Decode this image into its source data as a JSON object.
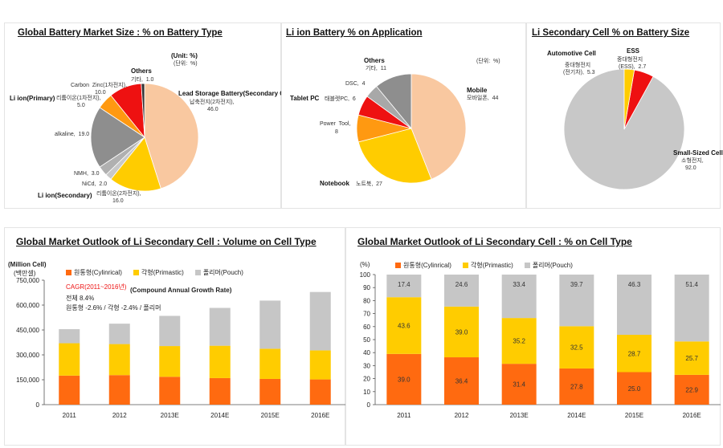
{
  "colors": {
    "cylindrical": "#FF6A10",
    "prismatic": "#FFCC00",
    "pouch": "#C6C6C6",
    "red": "#EE1111",
    "orange": "#FF9911",
    "peach": "#F9C8A0",
    "gray": "#8E8E8E",
    "lightgray": "#C8C8C8",
    "cagr": "#EE1111"
  },
  "pie1": {
    "title": "Global Battery Market Size : % on Battery Type",
    "unit_en": "(Unit: %)",
    "unit_ko": "(단위:  %)",
    "labels": {
      "others": {
        "name": "Others",
        "value": "기타,  1.0"
      },
      "lead": {
        "name": "Lead Storage Battery(Secondary Cell)",
        "line2": "납축전지(2차전지),",
        "line3": "46.0"
      },
      "li_secondary": {
        "name": "Li ion(Secondary)",
        "line2": "리튬이온(2차전지),",
        "line3": "16.0"
      },
      "nicd": "NiCd,  2.0",
      "nmh": "NMH,  3.0",
      "alkaline": "alkaline,  19.0",
      "li_primary": {
        "name": "Li ion(Primary)",
        "line2": "리튬이온(1차전지),",
        "line3": "5.0"
      },
      "carbon": {
        "line1": "Carbon  Zinc(1차전지),",
        "line2": "10.0"
      }
    }
  },
  "pie2": {
    "title": "Li ion Battery % on Application",
    "unit_ko": "(단위:  %)",
    "labels": {
      "others": {
        "name": "Others",
        "value": "기타,  11"
      },
      "mobile": {
        "name": "Mobile",
        "value": "모바일폰,  44"
      },
      "notebook": {
        "name": "Notebook",
        "value": "노트북,  27"
      },
      "power": {
        "line1": "Power  Tool,",
        "line2": "8"
      },
      "tablet": {
        "name": "Tablet PC",
        "value": "태블렛PC,  6"
      },
      "dsc": "DSC,  4"
    }
  },
  "pie3": {
    "title": "Li Secondary Cell % on Battery Size",
    "labels": {
      "auto": {
        "name": "Automotive Cell",
        "line2": "중대형전지",
        "line3": "(전기차),  5.3"
      },
      "ess": {
        "name": "ESS",
        "line2": "중대형전지",
        "line3": "(ESS),  2.7"
      },
      "small": {
        "name": "Small-Sized Cell",
        "line2": "소형전지,",
        "line3": "92.0"
      }
    }
  },
  "bar1": {
    "title": "Global Market Outlook of Li Secondary Cell : Volume on Cell Type",
    "unit_en": "(Million Cell)",
    "unit_ko": "(백만셀)",
    "cagr_title": "CAGR(2011~2016년)",
    "cagr_en": "(Compound Annual Growth Rate)",
    "cagr_total": "전체  8.4%",
    "cagr_detail": "원통형  -2.6%   /   각형  -2.4%   /   폴리머"
  },
  "bar2": {
    "title": "Global Market Outlook of Li Secondary Cell : % on Cell Type",
    "unit": "(%)"
  },
  "legend": {
    "cyl": "원통형(Cylinrical)",
    "pri": "각형(Primastic)",
    "pou": "폴리머(Pouch)"
  },
  "chart_data": [
    {
      "type": "pie",
      "title": "Global Battery Market Size : % on Battery Type",
      "categories": [
        "Lead Storage Battery(Secondary Cell)",
        "Li ion(Secondary)",
        "NiCd",
        "NMH",
        "alkaline",
        "Li ion(Primary)",
        "Carbon Zinc",
        "Others"
      ],
      "values": [
        46.0,
        16.0,
        2.0,
        3.0,
        19.0,
        5.0,
        10.0,
        1.0
      ]
    },
    {
      "type": "pie",
      "title": "Li ion Battery % on Application",
      "categories": [
        "Mobile",
        "Notebook",
        "Power Tool",
        "Tablet PC",
        "DSC",
        "Others"
      ],
      "values": [
        44,
        27,
        8,
        6,
        4,
        11
      ]
    },
    {
      "type": "pie",
      "title": "Li Secondary Cell % on Battery Size",
      "categories": [
        "Small-Sized Cell",
        "Automotive Cell",
        "ESS"
      ],
      "values": [
        92.0,
        5.3,
        2.7
      ]
    },
    {
      "type": "bar",
      "stacked": true,
      "title": "Global Market Outlook of Li Secondary Cell : Volume on Cell Type",
      "ylabel": "(Million Cell)",
      "categories": [
        "2011",
        "2012",
        "2013E",
        "2014E",
        "2015E",
        "2016E"
      ],
      "ylim": [
        0,
        750000
      ],
      "yticks": [
        0,
        150000,
        300000,
        450000,
        600000,
        750000
      ],
      "ytick_labels": [
        "0",
        "150,000",
        "300,000",
        "450,000",
        "600,000",
        "750,000"
      ],
      "series": [
        {
          "name": "원통형(Cylinrical)",
          "values": [
            175000,
            178000,
            168000,
            160000,
            155000,
            152000
          ]
        },
        {
          "name": "각형(Primastic)",
          "values": [
            195000,
            187000,
            185000,
            195000,
            182000,
            175000
          ]
        },
        {
          "name": "폴리머(Pouch)",
          "values": [
            85000,
            123000,
            182000,
            228000,
            290000,
            352000
          ]
        }
      ]
    },
    {
      "type": "bar",
      "stacked": true,
      "title": "Global Market Outlook of Li Secondary Cell : % on Cell Type",
      "ylabel": "(%)",
      "categories": [
        "2011",
        "2012",
        "2013E",
        "2014E",
        "2015E",
        "2016E"
      ],
      "ylim": [
        0,
        100
      ],
      "yticks": [
        0,
        10,
        20,
        30,
        40,
        50,
        60,
        70,
        80,
        90,
        100
      ],
      "series": [
        {
          "name": "원통형(Cylinrical)",
          "values": [
            39.0,
            36.4,
            31.4,
            27.8,
            25.0,
            22.9
          ],
          "labels": [
            "39.0",
            "36.4",
            "31.4",
            "27.8",
            "25.0",
            "22.9"
          ]
        },
        {
          "name": "각형(Primastic)",
          "values": [
            43.6,
            39.0,
            35.2,
            32.5,
            28.7,
            25.7
          ],
          "labels": [
            "43.6",
            "39.0",
            "35.2",
            "32.5",
            "28.7",
            "25.7"
          ]
        },
        {
          "name": "폴리머(Pouch)",
          "values": [
            17.4,
            24.6,
            33.4,
            39.7,
            46.3,
            51.4
          ],
          "labels": [
            "17.4",
            "24.6",
            "33.4",
            "39.7",
            "46.3",
            "51.4"
          ]
        }
      ]
    }
  ]
}
